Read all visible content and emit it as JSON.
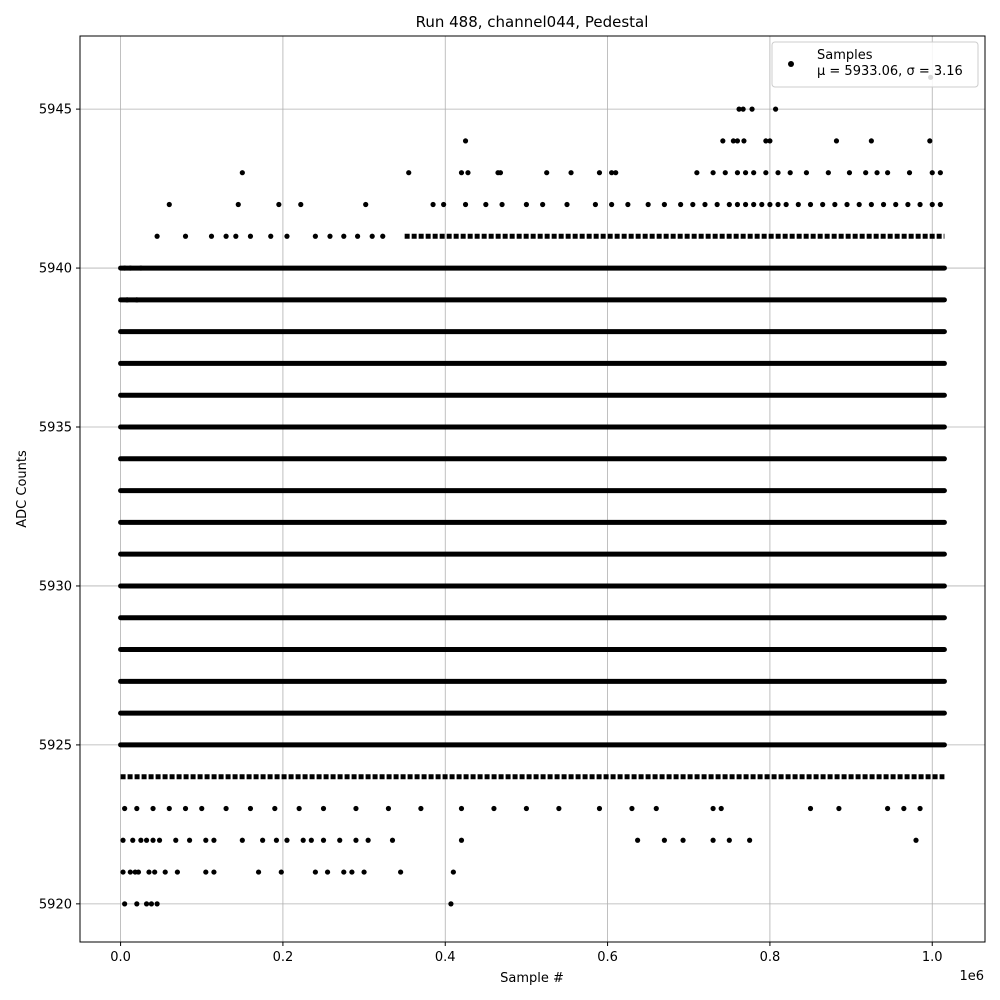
{
  "chart_data": {
    "type": "scatter",
    "title": "Run 488, channel044, Pedestal",
    "xlabel": "Sample #",
    "ylabel": "ADC Counts",
    "x_scale_label": "1e6",
    "xlim": [
      -50000,
      1065000
    ],
    "ylim": [
      5918.8,
      5947.3
    ],
    "xticks": [
      0,
      200000,
      400000,
      600000,
      800000,
      1000000
    ],
    "xtick_labels": [
      "0.0",
      "0.2",
      "0.4",
      "0.6",
      "0.8",
      "1.0"
    ],
    "yticks": [
      5920,
      5925,
      5930,
      5935,
      5940,
      5945
    ],
    "ytick_labels": [
      "5920",
      "5925",
      "5930",
      "5935",
      "5940",
      "5945"
    ],
    "grid": true,
    "legend": {
      "placement": "upper right",
      "entries": [
        {
          "label": "Samples",
          "stat_line": "μ = 5933.06, σ = 3.16"
        }
      ]
    },
    "marker_color": "#000000",
    "sample_range": [
      0,
      1015000
    ],
    "dense_levels": [
      5925,
      5926,
      5927,
      5928,
      5929,
      5930,
      5931,
      5932,
      5933,
      5934,
      5935,
      5936,
      5937,
      5938,
      5939,
      5940
    ],
    "partial_levels": [
      {
        "y": 5924,
        "x_range": [
          0,
          1015000
        ]
      },
      {
        "y": 5941,
        "x_range": [
          350000,
          1015000
        ]
      }
    ],
    "sparse_points": [
      [
        5000,
        5920
      ],
      [
        20000,
        5920
      ],
      [
        32000,
        5920
      ],
      [
        38000,
        5920
      ],
      [
        45000,
        5920
      ],
      [
        407000,
        5920
      ],
      [
        3000,
        5921
      ],
      [
        12000,
        5921
      ],
      [
        18000,
        5921
      ],
      [
        22000,
        5921
      ],
      [
        35000,
        5921
      ],
      [
        42000,
        5921
      ],
      [
        55000,
        5921
      ],
      [
        70000,
        5921
      ],
      [
        105000,
        5921
      ],
      [
        115000,
        5921
      ],
      [
        170000,
        5921
      ],
      [
        198000,
        5921
      ],
      [
        240000,
        5921
      ],
      [
        255000,
        5921
      ],
      [
        275000,
        5921
      ],
      [
        285000,
        5921
      ],
      [
        300000,
        5921
      ],
      [
        345000,
        5921
      ],
      [
        410000,
        5921
      ],
      [
        3000,
        5922
      ],
      [
        15000,
        5922
      ],
      [
        25000,
        5922
      ],
      [
        32000,
        5922
      ],
      [
        40000,
        5922
      ],
      [
        48000,
        5922
      ],
      [
        68000,
        5922
      ],
      [
        85000,
        5922
      ],
      [
        105000,
        5922
      ],
      [
        115000,
        5922
      ],
      [
        150000,
        5922
      ],
      [
        175000,
        5922
      ],
      [
        192000,
        5922
      ],
      [
        205000,
        5922
      ],
      [
        225000,
        5922
      ],
      [
        235000,
        5922
      ],
      [
        250000,
        5922
      ],
      [
        270000,
        5922
      ],
      [
        290000,
        5922
      ],
      [
        305000,
        5922
      ],
      [
        335000,
        5922
      ],
      [
        420000,
        5922
      ],
      [
        637000,
        5922
      ],
      [
        670000,
        5922
      ],
      [
        693000,
        5922
      ],
      [
        730000,
        5922
      ],
      [
        750000,
        5922
      ],
      [
        775000,
        5922
      ],
      [
        980000,
        5922
      ],
      [
        5000,
        5923
      ],
      [
        20000,
        5923
      ],
      [
        40000,
        5923
      ],
      [
        60000,
        5923
      ],
      [
        80000,
        5923
      ],
      [
        100000,
        5923
      ],
      [
        130000,
        5923
      ],
      [
        160000,
        5923
      ],
      [
        190000,
        5923
      ],
      [
        220000,
        5923
      ],
      [
        250000,
        5923
      ],
      [
        290000,
        5923
      ],
      [
        330000,
        5923
      ],
      [
        370000,
        5923
      ],
      [
        420000,
        5923
      ],
      [
        460000,
        5923
      ],
      [
        500000,
        5923
      ],
      [
        540000,
        5923
      ],
      [
        590000,
        5923
      ],
      [
        630000,
        5923
      ],
      [
        660000,
        5923
      ],
      [
        730000,
        5923
      ],
      [
        740000,
        5923
      ],
      [
        850000,
        5923
      ],
      [
        885000,
        5923
      ],
      [
        945000,
        5923
      ],
      [
        965000,
        5923
      ],
      [
        985000,
        5923
      ],
      [
        5000,
        5940
      ],
      [
        12000,
        5940
      ],
      [
        25000,
        5940
      ],
      [
        8000,
        5939
      ],
      [
        20000,
        5939
      ],
      [
        45000,
        5941
      ],
      [
        80000,
        5941
      ],
      [
        112000,
        5941
      ],
      [
        130000,
        5941
      ],
      [
        142000,
        5941
      ],
      [
        160000,
        5941
      ],
      [
        185000,
        5941
      ],
      [
        205000,
        5941
      ],
      [
        240000,
        5941
      ],
      [
        258000,
        5941
      ],
      [
        275000,
        5941
      ],
      [
        292000,
        5941
      ],
      [
        310000,
        5941
      ],
      [
        323000,
        5941
      ],
      [
        60000,
        5942
      ],
      [
        145000,
        5942
      ],
      [
        195000,
        5942
      ],
      [
        222000,
        5942
      ],
      [
        302000,
        5942
      ],
      [
        385000,
        5942
      ],
      [
        398000,
        5942
      ],
      [
        425000,
        5942
      ],
      [
        450000,
        5942
      ],
      [
        470000,
        5942
      ],
      [
        500000,
        5942
      ],
      [
        520000,
        5942
      ],
      [
        550000,
        5942
      ],
      [
        585000,
        5942
      ],
      [
        605000,
        5942
      ],
      [
        625000,
        5942
      ],
      [
        650000,
        5942
      ],
      [
        670000,
        5942
      ],
      [
        690000,
        5942
      ],
      [
        705000,
        5942
      ],
      [
        720000,
        5942
      ],
      [
        735000,
        5942
      ],
      [
        750000,
        5942
      ],
      [
        760000,
        5942
      ],
      [
        770000,
        5942
      ],
      [
        780000,
        5942
      ],
      [
        790000,
        5942
      ],
      [
        800000,
        5942
      ],
      [
        810000,
        5942
      ],
      [
        820000,
        5942
      ],
      [
        835000,
        5942
      ],
      [
        850000,
        5942
      ],
      [
        865000,
        5942
      ],
      [
        880000,
        5942
      ],
      [
        895000,
        5942
      ],
      [
        910000,
        5942
      ],
      [
        925000,
        5942
      ],
      [
        940000,
        5942
      ],
      [
        955000,
        5942
      ],
      [
        970000,
        5942
      ],
      [
        985000,
        5942
      ],
      [
        1000000,
        5942
      ],
      [
        1010000,
        5942
      ],
      [
        150000,
        5943
      ],
      [
        355000,
        5943
      ],
      [
        420000,
        5943
      ],
      [
        428000,
        5943
      ],
      [
        465000,
        5943
      ],
      [
        468000,
        5943
      ],
      [
        525000,
        5943
      ],
      [
        555000,
        5943
      ],
      [
        590000,
        5943
      ],
      [
        605000,
        5943
      ],
      [
        610000,
        5943
      ],
      [
        710000,
        5943
      ],
      [
        730000,
        5943
      ],
      [
        745000,
        5943
      ],
      [
        760000,
        5943
      ],
      [
        770000,
        5943
      ],
      [
        780000,
        5943
      ],
      [
        795000,
        5943
      ],
      [
        810000,
        5943
      ],
      [
        825000,
        5943
      ],
      [
        845000,
        5943
      ],
      [
        872000,
        5943
      ],
      [
        898000,
        5943
      ],
      [
        918000,
        5943
      ],
      [
        932000,
        5943
      ],
      [
        945000,
        5943
      ],
      [
        972000,
        5943
      ],
      [
        1000000,
        5943
      ],
      [
        1010000,
        5943
      ],
      [
        425000,
        5944
      ],
      [
        742000,
        5944
      ],
      [
        755000,
        5944
      ],
      [
        760000,
        5944
      ],
      [
        768000,
        5944
      ],
      [
        795000,
        5944
      ],
      [
        800000,
        5944
      ],
      [
        882000,
        5944
      ],
      [
        925000,
        5944
      ],
      [
        997000,
        5944
      ],
      [
        762000,
        5945
      ],
      [
        767000,
        5945
      ],
      [
        778000,
        5945
      ],
      [
        807000,
        5945
      ],
      [
        998000,
        5946
      ]
    ]
  }
}
